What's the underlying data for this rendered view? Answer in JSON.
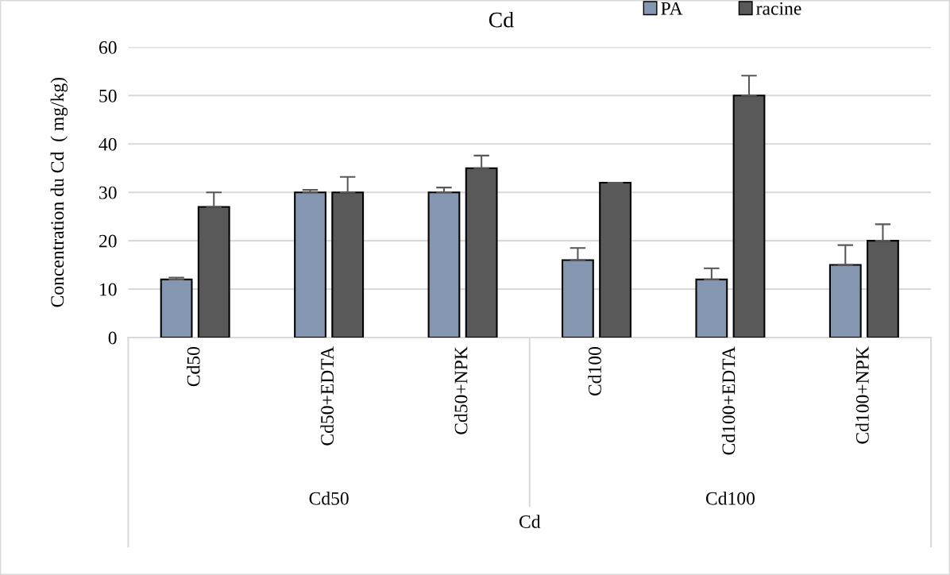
{
  "chart_data": {
    "type": "bar",
    "title": "Cd",
    "ylabel": "Concentration du Cd  ( mg/kg)",
    "xlabel": "Cd",
    "categories": [
      "Cd50",
      "Cd50+EDTA",
      "Cd50+NPK",
      "Cd100",
      "Cd100+EDTA",
      "Cd100+NPK"
    ],
    "annotations": [
      "Cd50",
      "Cd100"
    ],
    "series": [
      {
        "name": "PA",
        "color": "#8496b0",
        "values": [
          12,
          30,
          30,
          16,
          12,
          15
        ],
        "errors": [
          [
            12,
            12.4
          ],
          [
            30,
            30.5
          ],
          [
            30,
            31
          ],
          [
            16,
            18.5
          ],
          [
            12,
            14.3
          ],
          [
            15,
            19.1
          ]
        ]
      },
      {
        "name": "racine",
        "color": "#595959",
        "values": [
          27,
          30,
          35,
          32,
          50,
          20
        ],
        "errors": [
          [
            27,
            30
          ],
          [
            30,
            33.2
          ],
          [
            35,
            37.6
          ],
          [
            32,
            32
          ],
          [
            50,
            54.1
          ],
          [
            20,
            23.4
          ]
        ]
      }
    ],
    "ylim": [
      0,
      60
    ],
    "yticks": [
      0,
      10,
      20,
      30,
      40,
      50,
      60
    ],
    "grid": "y",
    "legend": "top right"
  }
}
